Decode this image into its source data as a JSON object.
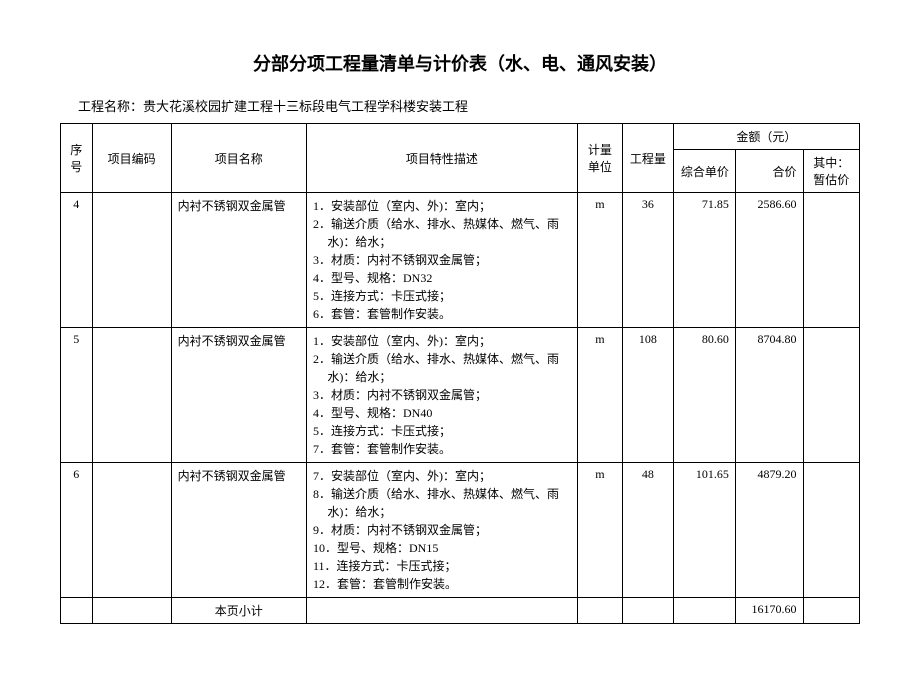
{
  "title": "分部分项工程量清单与计价表（水、电、通风安装）",
  "project_name_label": "工程名称：",
  "project_name": "贵大花溪校园扩建工程十三标段电气工程学科楼安装工程",
  "headers": {
    "seq": "序号",
    "code": "项目编码",
    "name": "项目名称",
    "desc": "项目特性描述",
    "unit": "计量单位",
    "qty": "工程量",
    "amount_group": "金额（元）",
    "unit_price": "综合单价",
    "total_price": "合价",
    "provisional": "其中：暂估价"
  },
  "rows": [
    {
      "seq": "4",
      "code": "",
      "name": "内衬不锈钢双金属管",
      "desc_items": [
        "1．安装部位（室内、外)：室内；",
        "2．输送介质（给水、排水、热媒体、燃气、雨水)：给水；",
        "3．材质：内衬不锈钢双金属管；",
        "4．型号、规格：DN32",
        "5．连接方式：卡压式接；",
        "6．套管：套管制作安装。"
      ],
      "unit": "m",
      "qty": "36",
      "unit_price": "71.85",
      "total_price": "2586.60",
      "provisional": ""
    },
    {
      "seq": "5",
      "code": "",
      "name": "内衬不锈钢双金属管",
      "desc_items": [
        "1．安装部位（室内、外)：室内；",
        "2．输送介质（给水、排水、热媒体、燃气、雨水)：给水；",
        "3．材质：内衬不锈钢双金属管；",
        "4．型号、规格：DN40",
        "5．连接方式：卡压式接；",
        "7．套管：套管制作安装。"
      ],
      "unit": "m",
      "qty": "108",
      "unit_price": "80.60",
      "total_price": "8704.80",
      "provisional": ""
    },
    {
      "seq": "6",
      "code": "",
      "name": "内衬不锈钢双金属管",
      "desc_items": [
        "7．安装部位（室内、外)：室内；",
        "8．输送介质（给水、排水、热媒体、燃气、雨水)：给水；",
        "9．材质：内衬不锈钢双金属管；",
        "10．型号、规格：DN15",
        "11．连接方式：卡压式接；",
        "12．套管：套管制作安装。"
      ],
      "unit": "m",
      "qty": "48",
      "unit_price": "101.65",
      "total_price": "4879.20",
      "provisional": ""
    }
  ],
  "subtotal": {
    "label": "本页小计",
    "total_price": "16170.60"
  }
}
